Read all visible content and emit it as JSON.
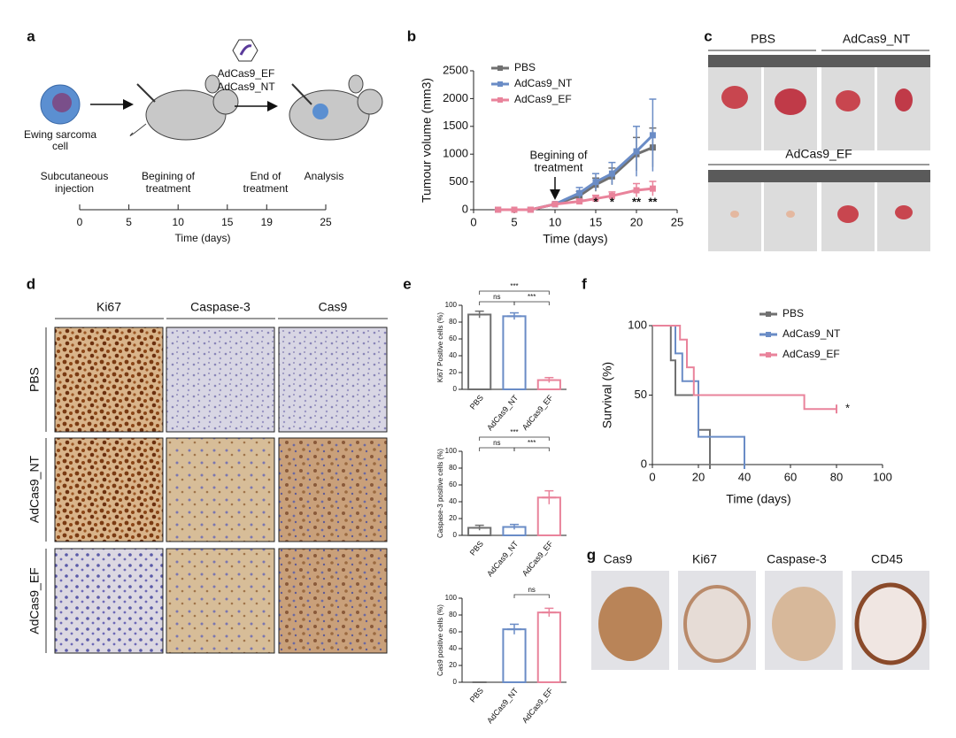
{
  "panel_labels": [
    "a",
    "b",
    "c",
    "d",
    "e",
    "f",
    "g"
  ],
  "diagram_a": {
    "vectors": [
      "AdCas9_EF",
      "AdCas9_NT"
    ],
    "cell_label": [
      "Ewing sarcoma",
      "cell"
    ],
    "events": [
      [
        "Subcutaneous",
        "injection"
      ],
      [
        "Begining of",
        "treatment"
      ],
      [
        "End of",
        "treatment"
      ],
      [
        "Analysis"
      ]
    ],
    "ticks": [
      0,
      5,
      10,
      15,
      19,
      25
    ],
    "axis_label": "Time (days)"
  },
  "photos_c": {
    "groups": [
      "PBS",
      "AdCas9_NT",
      "AdCas9_EF"
    ]
  },
  "ihc_d": {
    "columns": [
      "Ki67",
      "Caspase-3",
      "Cas9"
    ],
    "rows": [
      "PBS",
      "AdCas9_NT",
      "AdCas9_EF"
    ]
  },
  "ihc_g": {
    "labels": [
      "Cas9",
      "Ki67",
      "Caspase-3",
      "CD45"
    ]
  },
  "chart_data": [
    {
      "type": "line",
      "xlabel": "Time (days)",
      "ylabel": "Tumour volume (mm3)",
      "x": [
        3,
        5,
        7,
        10,
        13,
        15,
        17,
        20,
        22
      ],
      "xlim": [
        0,
        25
      ],
      "xticks": [
        0,
        5,
        10,
        15,
        20,
        25
      ],
      "ylim": [
        0,
        2500
      ],
      "yticks": [
        0,
        500,
        1000,
        1500,
        2000,
        2500
      ],
      "legend": "upper left",
      "series": [
        {
          "name": "PBS",
          "color": "#707070",
          "values": [
            0,
            0,
            0,
            100,
            250,
            450,
            600,
            1000,
            1120
          ],
          "errors": [
            0,
            0,
            0,
            20,
            80,
            120,
            150,
            300,
            350
          ]
        },
        {
          "name": "AdCas9_NT",
          "color": "#6a8cc6",
          "values": [
            0,
            0,
            0,
            100,
            300,
            500,
            650,
            1050,
            1340
          ],
          "errors": [
            0,
            0,
            0,
            20,
            100,
            150,
            200,
            450,
            650
          ]
        },
        {
          "name": "AdCas9_EF",
          "color": "#e9839b",
          "values": [
            0,
            0,
            0,
            100,
            150,
            200,
            250,
            350,
            380
          ],
          "errors": [
            0,
            0,
            0,
            20,
            40,
            60,
            70,
            120,
            130
          ]
        }
      ],
      "note": [
        "Begining of",
        "treatment"
      ],
      "note_x": 10,
      "annotations": [
        {
          "x": 15,
          "text": "*"
        },
        {
          "x": 17,
          "text": "*"
        },
        {
          "x": 20,
          "text": "**"
        },
        {
          "x": 22,
          "text": "**"
        }
      ]
    },
    {
      "type": "bar",
      "ylabel": "Ki67 Positive cells (%)",
      "categories": [
        "PBS",
        "AdCas9_NT",
        "AdCas9_EF"
      ],
      "values": [
        89,
        87,
        11
      ],
      "errors": [
        4,
        4,
        3
      ],
      "colors": [
        "#707070",
        "#6a8cc6",
        "#e9839b"
      ],
      "ylim": [
        0,
        100
      ],
      "yticks": [
        0,
        20,
        40,
        60,
        80,
        100
      ],
      "brackets": [
        {
          "between": [
            "PBS",
            "AdCas9_NT"
          ],
          "text": "ns"
        },
        {
          "between": [
            "AdCas9_NT",
            "AdCas9_EF"
          ],
          "text": "***"
        },
        {
          "between": [
            "PBS",
            "AdCas9_EF"
          ],
          "text": "***"
        }
      ]
    },
    {
      "type": "bar",
      "ylabel": "Caspase-3 positive cells (%)",
      "categories": [
        "PBS",
        "AdCas9_NT",
        "AdCas9_EF"
      ],
      "values": [
        9,
        10,
        45
      ],
      "errors": [
        3,
        3,
        8
      ],
      "colors": [
        "#707070",
        "#6a8cc6",
        "#e9839b"
      ],
      "ylim": [
        0,
        100
      ],
      "yticks": [
        0,
        20,
        40,
        60,
        80,
        100
      ],
      "brackets": [
        {
          "between": [
            "PBS",
            "AdCas9_NT"
          ],
          "text": "ns"
        },
        {
          "between": [
            "AdCas9_NT",
            "AdCas9_EF"
          ],
          "text": "***"
        },
        {
          "between": [
            "PBS",
            "AdCas9_EF"
          ],
          "text": "***"
        }
      ]
    },
    {
      "type": "bar",
      "ylabel": "Cas9 positive cells (%)",
      "categories": [
        "PBS",
        "AdCas9_NT",
        "AdCas9_EF"
      ],
      "values": [
        0,
        63,
        83
      ],
      "errors": [
        0,
        6,
        5
      ],
      "colors": [
        "#707070",
        "#6a8cc6",
        "#e9839b"
      ],
      "ylim": [
        0,
        100
      ],
      "yticks": [
        0,
        20,
        40,
        60,
        80,
        100
      ],
      "brackets": [
        {
          "between": [
            "AdCas9_NT",
            "AdCas9_EF"
          ],
          "text": "ns"
        }
      ]
    },
    {
      "type": "step",
      "xlabel": "Time (days)",
      "ylabel": "Survival (%)",
      "xlim": [
        0,
        100
      ],
      "xticks": [
        0,
        20,
        40,
        60,
        80,
        100
      ],
      "ylim": [
        0,
        100
      ],
      "yticks": [
        0,
        50,
        100
      ],
      "legend": "upper right",
      "series": [
        {
          "name": "PBS",
          "color": "#707070",
          "x": [
            0,
            8,
            10,
            20,
            25
          ],
          "values": [
            100,
            75,
            50,
            25,
            0
          ]
        },
        {
          "name": "AdCas9_NT",
          "color": "#6a8cc6",
          "x": [
            0,
            10,
            13,
            20,
            40
          ],
          "values": [
            100,
            80,
            60,
            20,
            0
          ]
        },
        {
          "name": "AdCas9_EF",
          "color": "#e9839b",
          "x": [
            0,
            12,
            15,
            18,
            66,
            80
          ],
          "values": [
            100,
            90,
            70,
            50,
            40,
            40
          ]
        }
      ],
      "annotations": [
        {
          "series": "AdCas9_EF",
          "text": "*"
        }
      ]
    }
  ]
}
